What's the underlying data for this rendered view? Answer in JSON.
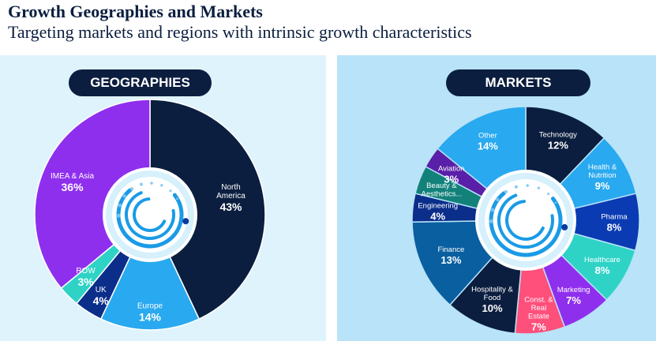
{
  "header": {
    "title": "Growth Geographies and Markets",
    "subtitle": "Targeting markets and regions with intrinsic growth characteristics"
  },
  "chart_data": [
    {
      "type": "pie",
      "title": "GEOGRAPHIES",
      "slices": [
        {
          "name": "North America",
          "label_lines": [
            "North",
            "America"
          ],
          "value": 43,
          "value_label": "43%",
          "color": "#0b1e3f",
          "text_color": "#ffffff"
        },
        {
          "name": "Europe",
          "label_lines": [
            "Europe"
          ],
          "value": 14,
          "value_label": "14%",
          "color": "#29a9ef",
          "text_color": "#ffffff"
        },
        {
          "name": "UK",
          "label_lines": [
            "UK"
          ],
          "value": 4,
          "value_label": "4%",
          "color": "#0a2e8a",
          "text_color": "#ffffff"
        },
        {
          "name": "ROW",
          "label_lines": [
            "ROW"
          ],
          "value": 3,
          "value_label": "3%",
          "color": "#2ed3c6",
          "text_color": "#ffffff"
        },
        {
          "name": "IMEA & Asia",
          "label_lines": [
            "IMEA & Asia"
          ],
          "value": 36,
          "value_label": "36%",
          "color": "#8f2fee",
          "text_color": "#ffffff"
        }
      ]
    },
    {
      "type": "pie",
      "title": "MARKETS",
      "slices": [
        {
          "name": "Technology",
          "label_lines": [
            "Technology"
          ],
          "value": 12,
          "value_label": "12%",
          "color": "#0b1e3f",
          "text_color": "#ffffff"
        },
        {
          "name": "Health & Nutrition",
          "label_lines": [
            "Health &",
            "Nutrition"
          ],
          "value": 9,
          "value_label": "9%",
          "color": "#29a9ef",
          "text_color": "#ffffff"
        },
        {
          "name": "Pharma",
          "label_lines": [
            "Pharma"
          ],
          "value": 8,
          "value_label": "8%",
          "color": "#0a3bb3",
          "text_color": "#ffffff"
        },
        {
          "name": "Healthcare",
          "label_lines": [
            "Healthcare"
          ],
          "value": 8,
          "value_label": "8%",
          "color": "#2ed3c6",
          "text_color": "#ffffff"
        },
        {
          "name": "Marketing",
          "label_lines": [
            "Marketing"
          ],
          "value": 7,
          "value_label": "7%",
          "color": "#8f2fee",
          "text_color": "#ffffff"
        },
        {
          "name": "Const. & Real Estate",
          "label_lines": [
            "Const. &",
            "Real",
            "Estate"
          ],
          "value": 7,
          "value_label": "7%",
          "color": "#ff4f7b",
          "text_color": "#ffffff"
        },
        {
          "name": "Hospitality & Food",
          "label_lines": [
            "Hospitality &",
            "Food"
          ],
          "value": 10,
          "value_label": "10%",
          "color": "#0b1e3f",
          "text_color": "#ffffff"
        },
        {
          "name": "Finance",
          "label_lines": [
            "Finance"
          ],
          "value": 13,
          "value_label": "13%",
          "color": "#0a5fa0",
          "text_color": "#ffffff"
        },
        {
          "name": "Engineering",
          "label_lines": [
            "Engineering"
          ],
          "value": 4,
          "value_label": "4%",
          "color": "#0a2e8a",
          "text_color": "#ffffff"
        },
        {
          "name": "Beauty & Aesthetics...",
          "label_lines": [
            "Beauty &",
            "Aesthetics..."
          ],
          "value": 4,
          "value_label": "",
          "color": "#12817a",
          "text_color": "#ffffff"
        },
        {
          "name": "Aviation",
          "label_lines": [
            "Aviation"
          ],
          "value": 3,
          "value_label": "3%",
          "color": "#5a1fa8",
          "text_color": "#ffffff"
        },
        {
          "name": "Other",
          "label_lines": [
            "Other"
          ],
          "value": 14,
          "value_label": "14%",
          "color": "#29a9ef",
          "text_color": "#ffffff"
        }
      ]
    }
  ],
  "colors": {
    "navy": "#0b1e3f",
    "left_bg": "#dff3fc",
    "right_bg": "#b9e3f8",
    "center_ring": "#1a9be6"
  }
}
